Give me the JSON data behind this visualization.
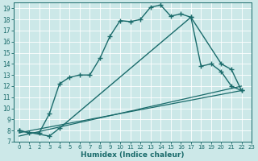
{
  "xlabel": "Humidex (Indice chaleur)",
  "bg_color": "#cce8e8",
  "line_color": "#1a6b6b",
  "xlim": [
    -0.5,
    23
  ],
  "ylim": [
    7,
    19.5
  ],
  "yticks": [
    7,
    8,
    9,
    10,
    11,
    12,
    13,
    14,
    15,
    16,
    17,
    18,
    19
  ],
  "xticks": [
    0,
    1,
    2,
    3,
    4,
    5,
    6,
    7,
    8,
    9,
    10,
    11,
    12,
    13,
    14,
    15,
    16,
    17,
    18,
    19,
    20,
    21,
    22,
    23
  ],
  "line1_x": [
    0,
    1,
    2,
    3,
    4,
    5,
    6,
    7,
    8,
    9,
    10,
    11,
    12,
    13,
    14,
    15,
    16,
    17,
    18,
    19,
    20,
    21,
    22
  ],
  "line1_y": [
    8.0,
    7.8,
    7.8,
    9.5,
    12.2,
    12.8,
    13.0,
    13.0,
    14.5,
    16.5,
    17.9,
    17.8,
    18.0,
    19.1,
    19.3,
    18.3,
    18.5,
    18.2,
    13.8,
    14.0,
    13.3,
    12.0,
    11.6
  ],
  "line2_x": [
    0,
    3,
    4,
    17,
    20,
    21,
    22
  ],
  "line2_y": [
    8.0,
    7.5,
    8.2,
    18.2,
    14.0,
    13.5,
    11.6
  ],
  "line3_x": [
    0,
    22
  ],
  "line3_y": [
    7.8,
    11.6
  ],
  "line4_x": [
    0,
    22
  ],
  "line4_y": [
    7.5,
    12.0
  ]
}
